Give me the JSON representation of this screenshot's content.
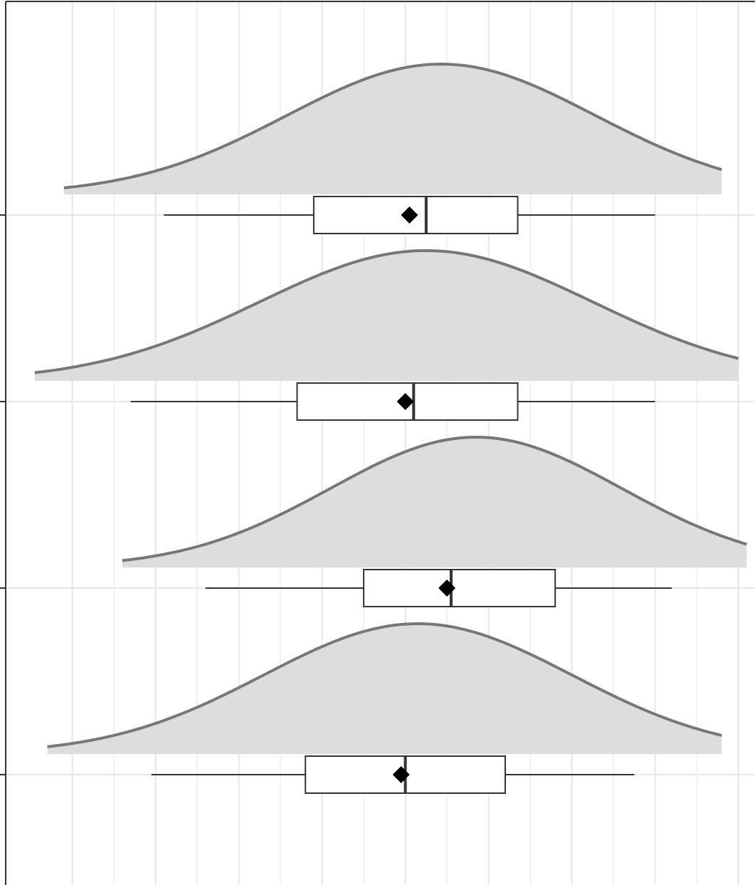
{
  "chart_data": {
    "type": "raincloud",
    "title": "",
    "xlabel": "",
    "ylabel": "",
    "x_range": [
      -4.8,
      4.2
    ],
    "x_gridlines": [
      -4,
      -3,
      -2,
      -1,
      0,
      1,
      2,
      3,
      4
    ],
    "grid": true,
    "x_tick_labels_visible": false,
    "y_tick_labels_visible": false,
    "colors": {
      "density_fill": "#dddddd",
      "density_line": "#777777",
      "box_stroke": "#333333",
      "mean_marker": "#000000",
      "grid": "#e6e6e6",
      "axis": "#333333"
    },
    "groups": [
      {
        "box": {
          "min": -2.9,
          "q1": -1.1,
          "median": 0.25,
          "q3": 1.35,
          "max": 3.0
        },
        "mean": 0.05,
        "density": {
          "from": -4.1,
          "to": 3.8,
          "peak": 0.43,
          "spread": 1.85,
          "scale": 1.0
        }
      },
      {
        "box": {
          "min": -3.3,
          "q1": -1.3,
          "median": 0.1,
          "q3": 1.35,
          "max": 3.0
        },
        "mean": 0.0,
        "density": {
          "from": -4.45,
          "to": 4.0,
          "peak": 0.25,
          "spread": 2.0,
          "scale": 1.0
        }
      },
      {
        "box": {
          "min": -2.4,
          "q1": -0.5,
          "median": 0.55,
          "q3": 1.8,
          "max": 3.2
        },
        "mean": 0.5,
        "density": {
          "from": -3.4,
          "to": 4.1,
          "peak": 0.85,
          "spread": 1.75,
          "scale": 1.0
        }
      },
      {
        "box": {
          "min": -3.05,
          "q1": -1.2,
          "median": 0.0,
          "q3": 1.2,
          "max": 2.75
        },
        "mean": -0.05,
        "density": {
          "from": -4.3,
          "to": 3.8,
          "peak": 0.15,
          "spread": 1.85,
          "scale": 1.0
        }
      }
    ]
  }
}
